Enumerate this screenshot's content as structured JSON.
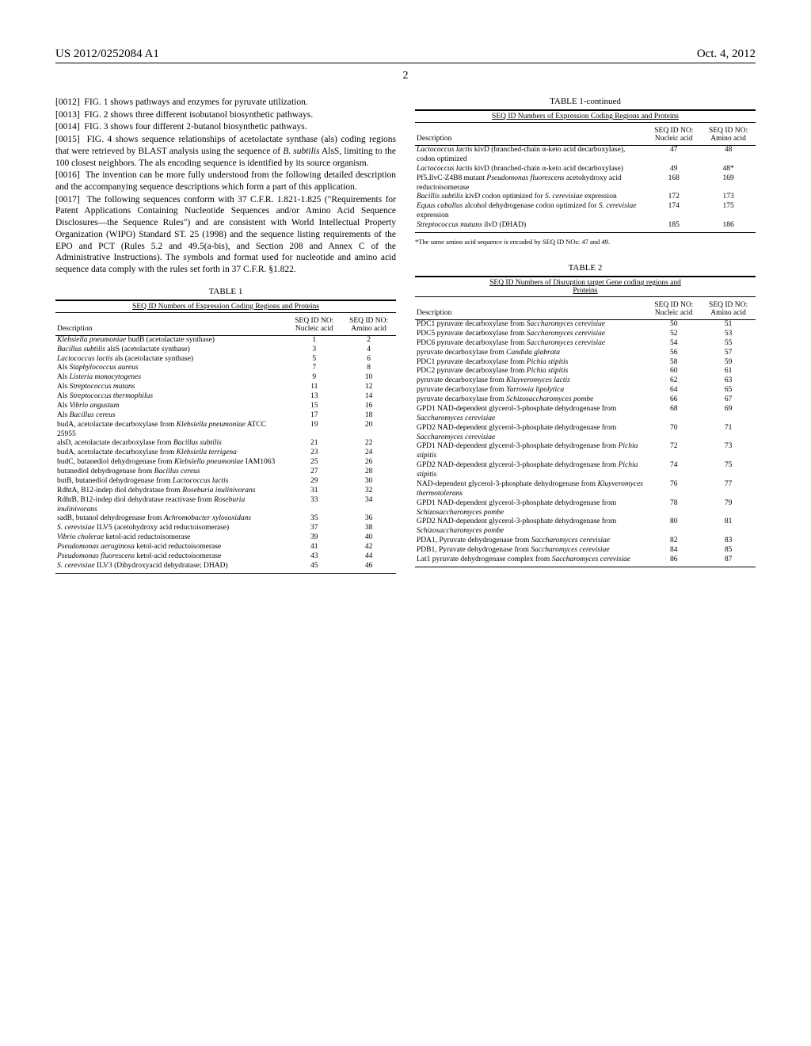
{
  "header": {
    "left": "US 2012/0252084 A1",
    "right": "Oct. 4, 2012"
  },
  "page_number": "2",
  "left_column": {
    "paragraphs": [
      {
        "num": "[0012]",
        "text": "FIG. 1 shows pathways and enzymes for pyruvate utilization."
      },
      {
        "num": "[0013]",
        "text": "FIG. 2 shows three different isobutanol biosynthetic pathways."
      },
      {
        "num": "[0014]",
        "text": "FIG. 3 shows four different 2-butanol biosynthetic pathways."
      },
      {
        "num": "[0015]",
        "text": "FIG. 4 shows sequence relationships of acetolactate synthase (als) coding regions that were retrieved by BLAST analysis using the sequence of B. subtilis AlsS, limiting to the 100 closest neighbors. The als encoding sequence is identified by its source organism."
      },
      {
        "num": "[0016]",
        "text": "The invention can be more fully understood from the following detailed description and the accompanying sequence descriptions which form a part of this application."
      },
      {
        "num": "[0017]",
        "text": "The following sequences conform with 37 C.F.R. 1.821-1.825 (\"Requirements for Patent Applications Containing Nucleotide Sequences and/or Amino Acid Sequence Disclosures—the Sequence Rules\") and are consistent with World Intellectual Property Organization (WIPO) Standard ST. 25 (1998) and the sequence listing requirements of the EPO and PCT (Rules 5.2 and 49.5(a-bis), and Section 208 and Annex C of the Administrative Instructions). The symbols and format used for nucleotide and amino acid sequence data comply with the rules set forth in 37 C.F.R. §1.822."
      }
    ]
  },
  "table1": {
    "caption": "TABLE 1",
    "subcaption": "SEQ ID Numbers of Expression Coding Regions and Proteins",
    "headers": [
      "Description",
      "SEQ ID NO:\nNucleic acid",
      "SEQ ID NO:\nAmino acid"
    ],
    "rows": [
      [
        "Klebsiella pneumoniae budB (acetolactate synthase)",
        "1",
        "2"
      ],
      [
        "Bacillus subtilis alsS (acetolactate synthase)",
        "3",
        "4"
      ],
      [
        "Lactococcus lactis als (acetolactate synthase)",
        "5",
        "6"
      ],
      [
        "Als Staphylococcus aureus",
        "7",
        "8"
      ],
      [
        "Als Listeria monocytogenes",
        "9",
        "10"
      ],
      [
        "Als Streptococcus mutans",
        "11",
        "12"
      ],
      [
        "Als Streptococcus thermophilus",
        "13",
        "14"
      ],
      [
        "Als Vibrio angustum",
        "15",
        "16"
      ],
      [
        "Als Bacillus cereus",
        "17",
        "18"
      ],
      [
        "budA, acetolactate decarboxylase from Klebsiella pneumoniae ATCC 25955",
        "19",
        "20"
      ],
      [
        "alsD, acetolactate decarboxylase from Bacillus subtilis",
        "21",
        "22"
      ],
      [
        "budA, acetolactate decarboxylase from Klebsiella terrigena",
        "23",
        "24"
      ],
      [
        "budC, butanediol dehydrogenase from Klebsiella pneumoniae IAM1063",
        "25",
        "26"
      ],
      [
        "butanediol dehydrogenase from Bacillus cereus",
        "27",
        "28"
      ],
      [
        "butB, butanediol dehydrogenase from Lactococcus lactis",
        "29",
        "30"
      ],
      [
        "RdhtA, B12-indep diol dehydratase from Roseburia inulinivorans",
        "31",
        "32"
      ],
      [
        "RdhtB, B12-indep diol dehydratase reactivase from Roseburia inulinivorans",
        "33",
        "34"
      ],
      [
        "sadB, butanol dehydrogenase from Achromobacter xylosoxidans",
        "35",
        "36"
      ],
      [
        "S. cerevisiae ILV5 (acetohydroxy acid reductoisomerase)",
        "37",
        "38"
      ],
      [
        "Vibrio cholerae ketol-acid reductoisomerase",
        "39",
        "40"
      ],
      [
        "Pseudomonas aeruginosa ketol-acid reductoisomerase",
        "41",
        "42"
      ],
      [
        "Pseudomonas fluorescens ketol-acid reductoisomerase",
        "43",
        "44"
      ],
      [
        "S. cerevisiae ILV3 (Dihydroxyacid dehydratase; DHAD)",
        "45",
        "46"
      ]
    ]
  },
  "table1_cont": {
    "caption": "TABLE 1-continued",
    "subcaption": "SEQ ID Numbers of Expression Coding Regions and Proteins",
    "headers": [
      "Description",
      "SEQ ID NO:\nNucleic acid",
      "SEQ ID NO:\nAmino acid"
    ],
    "rows": [
      [
        "Lactococcus lactis kivD (branched-chain α-keto acid decarboxylase), codon optimized",
        "47",
        "48"
      ],
      [
        "Lactococcus lactis kivD (branched-chain α-keto acid decarboxylase)",
        "49",
        "48*"
      ],
      [
        "Pf5.IlvC-Z4B8 mutant Pseudomonas fluorescens acetohydroxy acid reductoisomerase",
        "168",
        "169"
      ],
      [
        "Bacillis subtilis kivD codon optimized for S. cerevisiae expression",
        "172",
        "173"
      ],
      [
        "Equus caballus alcohol dehydrogenase codon optimized for S. cerevisiae expression",
        "174",
        "175"
      ],
      [
        "Streptococcus mutans ilvD (DHAD)",
        "185",
        "186"
      ]
    ],
    "footnote": "*The same amino acid sequence is encoded by SEQ ID NOs: 47 and 49."
  },
  "table2": {
    "caption": "TABLE 2",
    "subcaption": "SEQ ID Numbers of Disruption target Gene coding regions and Proteins",
    "headers": [
      "Description",
      "SEQ ID NO:\nNucleic acid",
      "SEQ ID NO:\nAmino acid"
    ],
    "rows": [
      [
        "PDC1 pyruvate decarboxylase from Saccharomyces cerevisiae",
        "50",
        "51"
      ],
      [
        "PDC5 pyruvate decarboxylase from Saccharomyces cerevisiae",
        "52",
        "53"
      ],
      [
        "PDC6 pyruvate decarboxylase from Saccharomyces cerevisiae",
        "54",
        "55"
      ],
      [
        "pyruvate decarboxylase from Candida glabrata",
        "56",
        "57"
      ],
      [
        "PDC1 pyruvate decarboxylase from Pichia stipitis",
        "58",
        "59"
      ],
      [
        "PDC2 pyruvate decarboxylase from Pichia stipitis",
        "60",
        "61"
      ],
      [
        "pyruvate decarboxylase from Kluyveromyces lactis",
        "62",
        "63"
      ],
      [
        "pyruvate decarboxylase from Yarrowia lipolytica",
        "64",
        "65"
      ],
      [
        "pyruvate decarboxylase from Schizosaccharomyces pombe",
        "66",
        "67"
      ],
      [
        "GPD1 NAD-dependent glycerol-3-phosphate dehydrogenase from Saccharomyces cerevisiae",
        "68",
        "69"
      ],
      [
        "GPD2 NAD-dependent glycerol-3-phosphate dehydrogenase from Saccharomyces cerevisiae",
        "70",
        "71"
      ],
      [
        "GPD1 NAD-dependent glycerol-3-phosphate dehydrogenase from Pichia stipitis",
        "72",
        "73"
      ],
      [
        "GPD2 NAD-dependent glycerol-3-phosphate dehydrogenase from Pichia stipitis",
        "74",
        "75"
      ],
      [
        "NAD-dependent glycerol-3-phosphate dehydrogenase from Kluyveromyces thermotolerans",
        "76",
        "77"
      ],
      [
        "GPD1 NAD-dependent glycerol-3-phosphate dehydrogenase from Schizosaccharomyces pombe",
        "78",
        "79"
      ],
      [
        "GPD2 NAD-dependent glycerol-3-phosphate dehydrogenase from Schizosaccharomyces pombe",
        "80",
        "81"
      ],
      [
        "PDA1, Pyruvate dehydrogenase from Saccharomyces cerevisiae",
        "82",
        "83"
      ],
      [
        "PDB1, Pyruvate dehydrogenase from Saccharomyces cerevisiae",
        "84",
        "85"
      ],
      [
        "Lat1 pyruvate dehydrogenase complex from Saccharomyces cerevisiae",
        "86",
        "87"
      ]
    ]
  }
}
